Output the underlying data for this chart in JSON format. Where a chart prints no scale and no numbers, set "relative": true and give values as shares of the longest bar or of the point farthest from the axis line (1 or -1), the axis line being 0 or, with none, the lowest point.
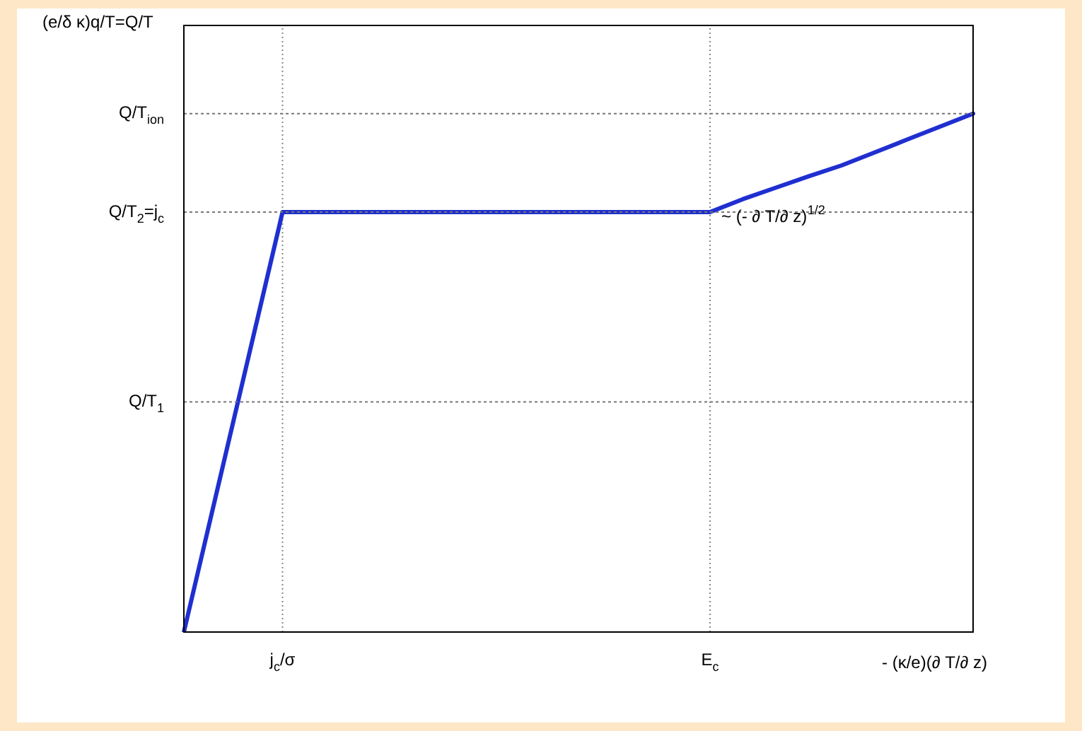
{
  "chart_data": {
    "type": "line",
    "relative": true,
    "xlabel": "- (κ/e)(∂ T/∂ z)",
    "categories": [
      null,
      null,
      null,
      "j$_{c}$/σ",
      null,
      null,
      null,
      null,
      null,
      null,
      null,
      null,
      null,
      null,
      null,
      null,
      "E$_{c}$",
      null,
      null,
      null,
      null,
      null,
      null,
      null,
      null
    ],
    "series": [
      {
        "color": "#1f2fd0",
        "values": [
          0,
          0.27,
          0.54,
          0.81,
          0.81,
          0.81,
          0.81,
          0.81,
          0.81,
          0.81,
          0.81,
          0.81,
          0.81,
          0.81,
          0.81,
          0.81,
          0.81,
          0.835,
          0.857,
          0.879,
          0.9,
          0.925,
          0.95,
          0.975,
          1
        ]
      }
    ],
    "marker": "none",
    "line_style": "solid",
    "grid": "x",
    "ref_lines": [
      {
        "axis": "y",
        "value": 0.444,
        "label": "Q/T$_{1}$",
        "line_style": "dotted"
      },
      {
        "axis": "y",
        "value": 0.81,
        "label": "Q/T$_{2}$=j$_{c}$",
        "line_style": "dotted"
      },
      {
        "axis": "y",
        "value": 1,
        "label": "Q/T$_{ion}$",
        "line_style": "dotted"
      }
    ],
    "annotations": [
      "(e/δ κ)q/T=Q/T",
      {
        "text": "~ (- ∂ T/∂ z)$^{1/2}$",
        "x": "E$_{c}$",
        "y": 0.8
      }
    ]
  }
}
